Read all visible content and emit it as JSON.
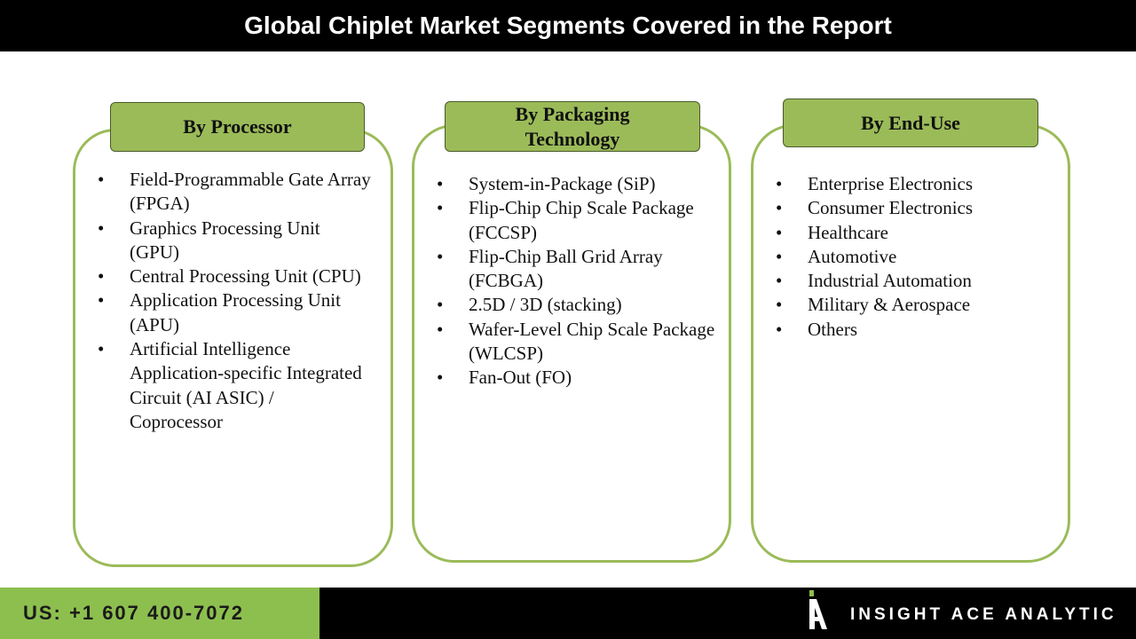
{
  "header": {
    "title": "Global Chiplet Market Segments Covered in the Report"
  },
  "panels": [
    {
      "title": "By Processor",
      "items": [
        "Field-Programmable Gate Array (FPGA)",
        "Graphics Processing Unit (GPU)",
        "Central Processing Unit (CPU)",
        "Application Processing Unit (APU)",
        "Artificial Intelligence Application-specific Integrated Circuit (AI ASIC) / Coprocessor"
      ]
    },
    {
      "title": "By Packaging Technology",
      "items": [
        "System-in-Package (SiP)",
        "Flip-Chip Chip Scale Package (FCCSP)",
        "Flip-Chip Ball Grid Array (FCBGA)",
        "2.5D / 3D (stacking)",
        "Wafer-Level Chip Scale Package (WLCSP)",
        "Fan-Out (FO)"
      ]
    },
    {
      "title": "By End-Use",
      "items": [
        "Enterprise Electronics",
        "Consumer Electronics",
        "Healthcare",
        "Automotive",
        "Industrial Automation",
        "Military & Aerospace",
        "Others"
      ]
    }
  ],
  "footer": {
    "phone": "US: +1 607 400-7072",
    "brand": "INSIGHT ACE ANALYTIC"
  }
}
